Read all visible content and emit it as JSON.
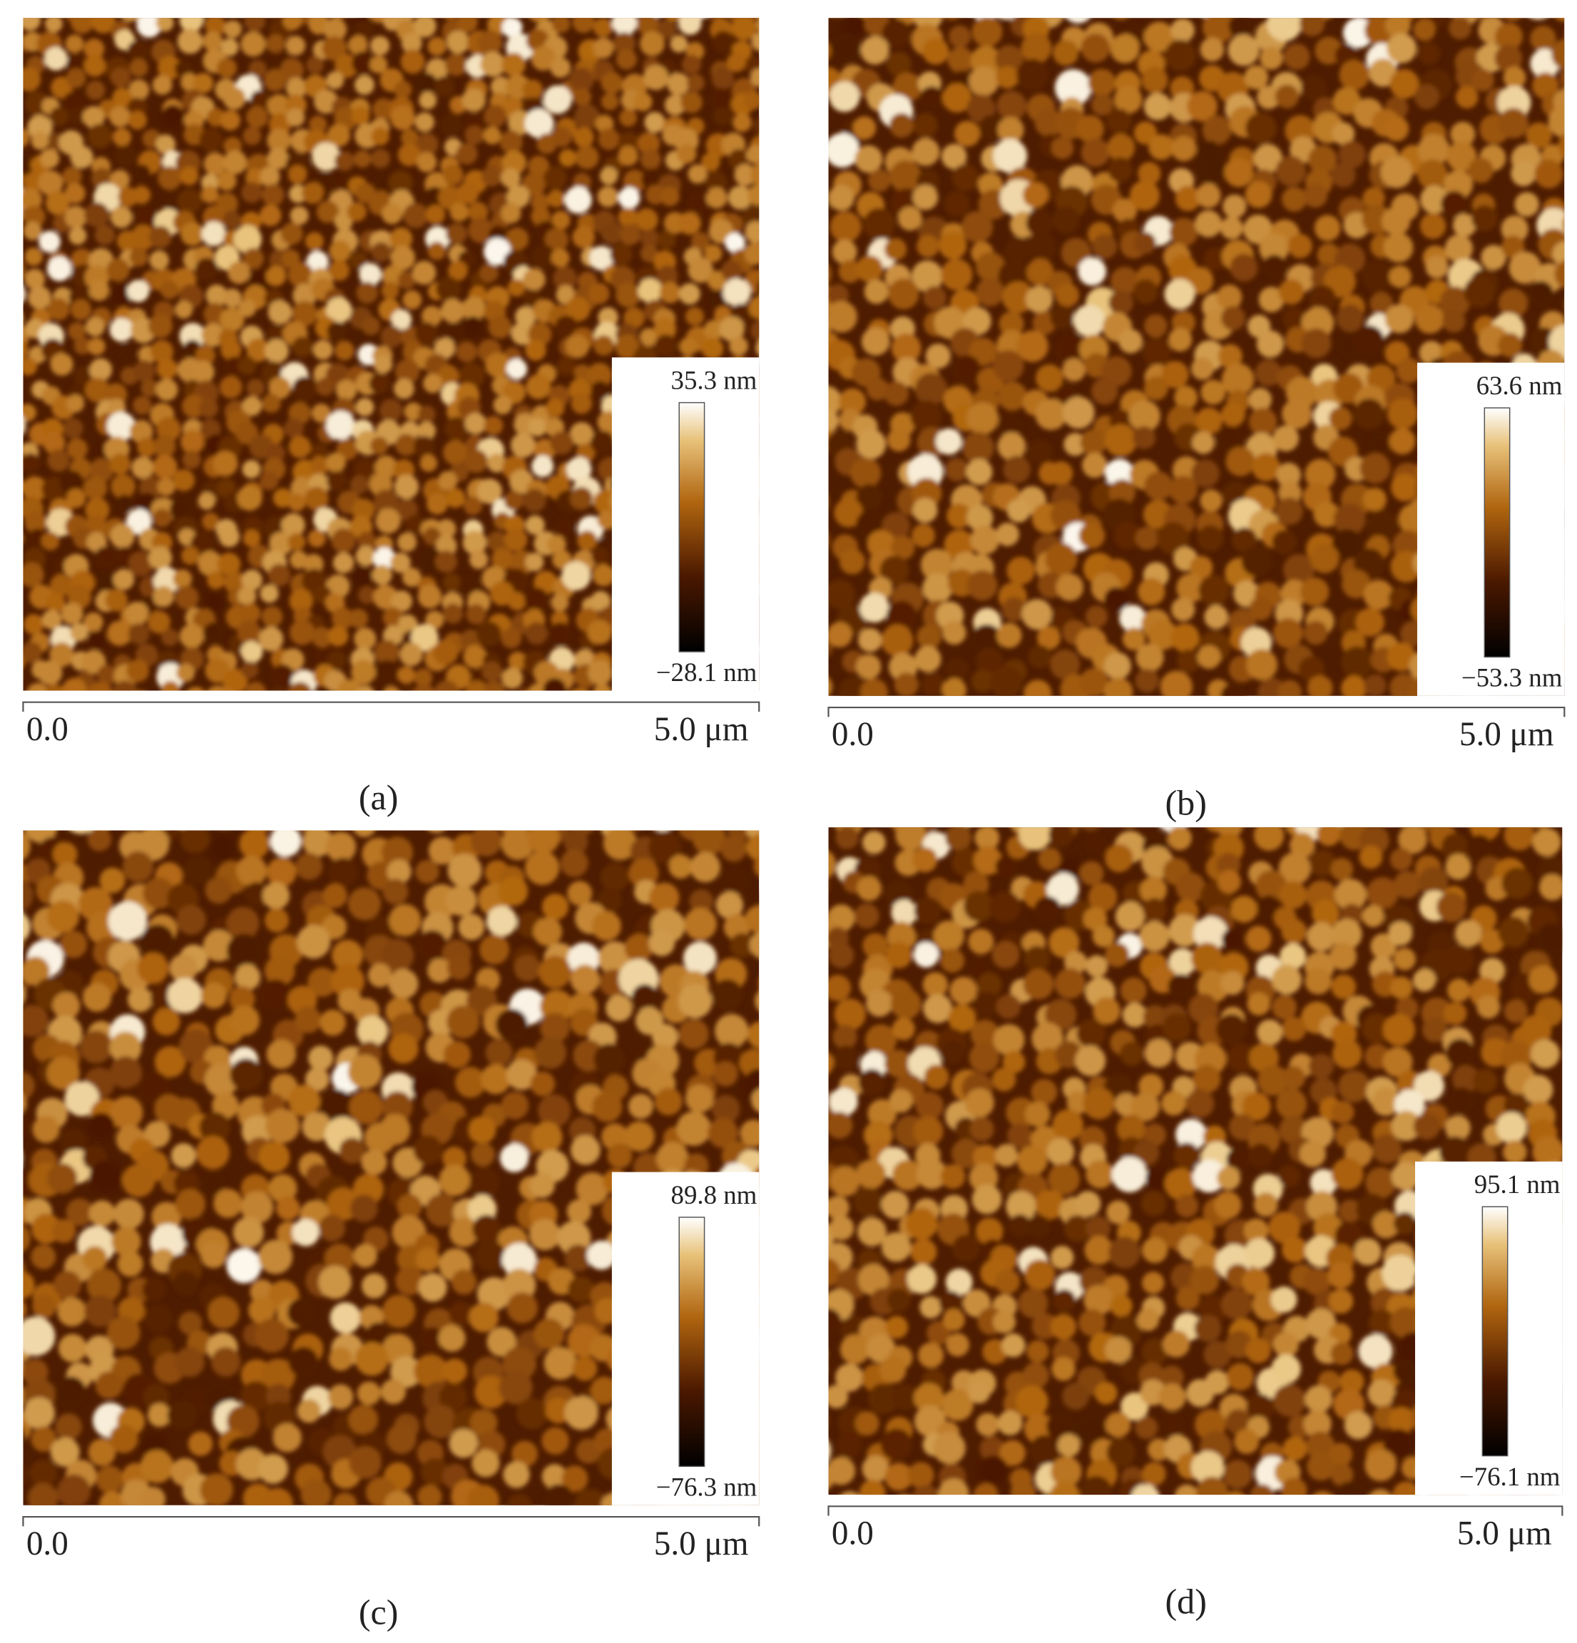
{
  "panels": [
    {
      "label": "(a)",
      "colorbar_max": "35.3 nm",
      "colorbar_min": "−28.1 nm",
      "scale_start": "0.0",
      "scale_end": "5.0 μm"
    },
    {
      "label": "(b)",
      "colorbar_max": "63.6 nm",
      "colorbar_min": "−53.3 nm",
      "scale_start": "0.0",
      "scale_end": "5.0 μm"
    },
    {
      "label": "(c)",
      "colorbar_max": "89.8 nm",
      "colorbar_min": "−76.3 nm",
      "scale_start": "0.0",
      "scale_end": "5.0 μm"
    },
    {
      "label": "(d)",
      "colorbar_max": "95.1 nm",
      "colorbar_min": "−76.1 nm",
      "scale_start": "0.0",
      "scale_end": "5.0 μm"
    }
  ]
}
